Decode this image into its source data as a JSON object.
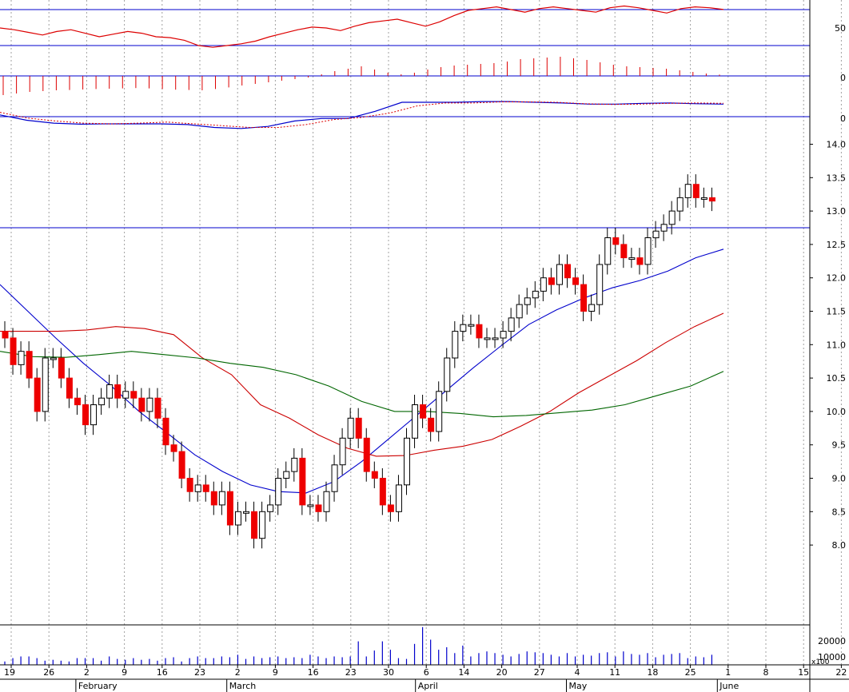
{
  "chart_data": {
    "type": "line",
    "price_axis": {
      "range": [
        7.55,
        14.25
      ],
      "ticks": [
        "14.0",
        "13.5",
        "13.0",
        "12.5",
        "12.0",
        "11.5",
        "11.0",
        "10.5",
        "10.0",
        "9.5",
        "9.0",
        "8.5",
        "8.0"
      ],
      "horizontal_line": 12.75
    },
    "indicator_axes": [
      {
        "ticks": [
          "50"
        ]
      },
      {
        "ticks": [
          "0"
        ]
      },
      {
        "ticks": [
          "0"
        ]
      }
    ],
    "volume_axis": {
      "ticks": [
        "20000",
        "10000"
      ],
      "multiplier_label": "x100"
    },
    "x_axis": {
      "day_labels": [
        "19",
        "26",
        "2",
        "9",
        "16",
        "23",
        "2",
        "9",
        "16",
        "23",
        "30",
        "6",
        "14",
        "20",
        "27",
        "4",
        "11",
        "18",
        "25",
        "1",
        "8",
        "15",
        "22"
      ],
      "month_labels": [
        {
          "label": "February",
          "day_index": 2
        },
        {
          "label": "March",
          "day_index": 6
        },
        {
          "label": "April",
          "day_index": 11
        },
        {
          "label": "May",
          "day_index": 15
        },
        {
          "label": "June",
          "day_index": 19
        }
      ]
    },
    "candles": {
      "open": [
        11.2,
        11.1,
        10.7,
        10.9,
        10.5,
        10.0,
        10.8,
        10.8,
        10.5,
        10.2,
        10.1,
        9.8,
        10.1,
        10.2,
        10.4,
        10.2,
        10.3,
        10.2,
        10.0,
        10.2,
        9.9,
        9.5,
        9.4,
        9.0,
        8.8,
        8.9,
        8.8,
        8.6,
        8.8,
        8.3,
        8.5,
        8.5,
        8.1,
        8.5,
        8.6,
        9.0,
        9.1,
        9.3,
        8.6,
        8.6,
        8.5,
        8.8,
        9.2,
        9.6,
        9.9,
        9.6,
        9.1,
        9.0,
        8.6,
        8.5,
        8.9,
        9.6,
        10.1,
        9.9,
        9.7,
        10.3,
        10.8,
        11.2,
        11.3,
        11.3,
        11.1,
        11.1,
        11.1,
        11.2,
        11.4,
        11.6,
        11.7,
        11.8,
        12.0,
        11.9,
        12.2,
        12.0,
        11.9,
        11.5,
        11.6,
        12.2,
        12.6,
        12.5,
        12.3,
        12.3,
        12.2,
        12.6,
        12.7,
        12.8,
        13.0,
        13.2,
        13.4,
        13.2,
        13.2
      ]
    },
    "series": [
      {
        "name": "",
        "color": "#0000cc",
        "values": [
          11.9,
          11.5,
          11.1,
          10.72,
          10.38,
          10.0,
          9.68,
          9.35,
          9.1,
          8.9,
          8.8,
          8.78,
          8.95,
          9.25,
          9.6,
          9.95,
          10.3,
          10.65,
          10.98,
          11.3,
          11.52,
          11.7,
          11.85,
          11.96,
          12.1,
          12.3,
          12.43
        ]
      },
      {
        "name": "",
        "color": "#cc0000",
        "values": [
          11.2,
          11.2,
          11.2,
          11.22,
          11.27,
          11.24,
          11.15,
          10.8,
          10.55,
          10.1,
          9.9,
          9.65,
          9.45,
          9.33,
          9.34,
          9.42,
          9.48,
          9.58,
          9.78,
          10.0,
          10.28,
          10.52,
          10.76,
          11.03,
          11.27,
          11.47
        ]
      },
      {
        "name": "",
        "color": "#006600",
        "values": [
          10.9,
          10.82,
          10.81,
          10.85,
          10.9,
          10.85,
          10.8,
          10.72,
          10.66,
          10.55,
          10.38,
          10.15,
          10.0,
          10.0,
          9.97,
          9.92,
          9.94,
          9.98,
          10.02,
          10.1,
          10.24,
          10.38,
          10.6
        ]
      }
    ],
    "volume": [
      4,
      8,
      10,
      10,
      8,
      5,
      6,
      5,
      4,
      8,
      8,
      8,
      5,
      10,
      7,
      6,
      8,
      6,
      7,
      5,
      8,
      9,
      4,
      8,
      10,
      8,
      8,
      10,
      9,
      12,
      7,
      10,
      8,
      9,
      10,
      8,
      9,
      8,
      12,
      10,
      8,
      10,
      9,
      10,
      28,
      10,
      17,
      28,
      18,
      8,
      7,
      25,
      45,
      30,
      18,
      21,
      14,
      23,
      10,
      14,
      16,
      14,
      12,
      10,
      13,
      16,
      15,
      14,
      12,
      10,
      14,
      10,
      12,
      11,
      14,
      15,
      10,
      16,
      13,
      12,
      14,
      9,
      12,
      13,
      14,
      8,
      10,
      9,
      12
    ],
    "indicators": {
      "rsi_line": [
        50,
        48,
        45,
        42,
        46,
        48,
        44,
        40,
        43,
        46,
        44,
        40,
        39,
        36,
        30,
        28,
        30,
        32,
        35,
        40,
        44,
        48,
        51,
        50,
        47,
        52,
        56,
        58,
        60,
        56,
        52,
        57,
        64,
        70,
        72,
        74,
        71,
        68,
        72,
        74,
        72,
        70,
        68,
        73,
        75,
        73,
        70,
        67,
        72,
        74,
        73,
        71
      ],
      "macd_histogram": [
        -1.2,
        -1.1,
        -1.0,
        -0.95,
        -0.9,
        -0.88,
        -0.85,
        -0.82,
        -0.8,
        -0.78,
        -0.76,
        -0.78,
        -0.82,
        -0.86,
        -0.88,
        -0.9,
        -0.82,
        -0.72,
        -0.6,
        -0.5,
        -0.4,
        -0.3,
        -0.2,
        -0.1,
        0.1,
        0.3,
        0.45,
        0.6,
        0.4,
        0.2,
        0.1,
        0.2,
        0.4,
        0.55,
        0.65,
        0.7,
        0.75,
        0.8,
        0.9,
        1.05,
        1.1,
        1.15,
        1.2,
        1.1,
        1.0,
        0.85,
        0.7,
        0.6,
        0.55,
        0.5,
        0.45,
        0.35,
        0.25,
        0.15,
        0.08
      ],
      "macd_line": [
        0.05,
        -0.1,
        -0.18,
        -0.21,
        -0.2,
        -0.2,
        -0.2,
        -0.22,
        -0.3,
        -0.33,
        -0.27,
        -0.12,
        -0.05,
        -0.05,
        0.15,
        0.4,
        0.4,
        0.4,
        0.42,
        0.42,
        0.4,
        0.38,
        0.35,
        0.35,
        0.37,
        0.38,
        0.36,
        0.35
      ],
      "macd_signal": [
        0.12,
        -0.04,
        -0.12,
        -0.18,
        -0.2,
        -0.18,
        -0.15,
        -0.2,
        -0.25,
        -0.3,
        -0.3,
        -0.22,
        -0.08,
        -0.02,
        0.1,
        0.3,
        0.38,
        0.38,
        0.41,
        0.41,
        0.4,
        0.36,
        0.34,
        0.35,
        0.37,
        0.38,
        0.37
      ]
    }
  }
}
